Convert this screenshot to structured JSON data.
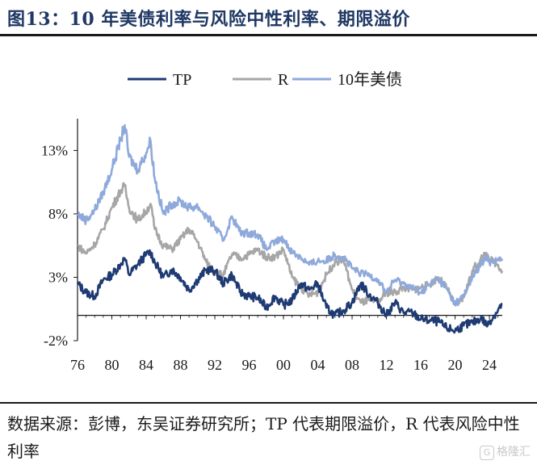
{
  "header": {
    "title": "图13：10 年美债利率与风险中性利率、期限溢价"
  },
  "footer": {
    "source": "数据来源：彭博，东吴证券研究所；TP 代表期限溢价，R 代表风险中性利率"
  },
  "watermark": {
    "icon": "G",
    "text": "格隆汇"
  },
  "chart_data": {
    "type": "line",
    "title": "",
    "xlabel": "",
    "ylabel": "",
    "xlim": [
      1976,
      2025.5
    ],
    "ylim": [
      -2,
      15
    ],
    "y_ticks": [
      13,
      8,
      3,
      -2
    ],
    "y_tick_labels": [
      "13%",
      "8%",
      "3%",
      "-2%"
    ],
    "x_ticks": [
      1976,
      1980,
      1984,
      1988,
      1992,
      1996,
      2000,
      2004,
      2008,
      2012,
      2016,
      2020,
      2024
    ],
    "x_tick_labels": [
      "76",
      "80",
      "84",
      "88",
      "92",
      "96",
      "00",
      "04",
      "08",
      "12",
      "16",
      "20",
      "24"
    ],
    "legend_position": "top",
    "grid": false,
    "series": [
      {
        "name": "TP",
        "color": "#1f3b73",
        "x": [
          1976,
          1977,
          1978,
          1979,
          1980,
          1981,
          1981.5,
          1982,
          1983,
          1984,
          1984.5,
          1985,
          1986,
          1987,
          1988,
          1989,
          1990,
          1991,
          1992,
          1993,
          1994,
          1995,
          1996,
          1997,
          1998,
          1999,
          2000,
          2001,
          2002,
          2003,
          2004,
          2005,
          2006,
          2007,
          2008,
          2009,
          2010,
          2011,
          2012,
          2013,
          2014,
          2015,
          2016,
          2017,
          2018,
          2019,
          2020,
          2021,
          2022,
          2023,
          2023.8,
          2024,
          2025,
          2025.5
        ],
        "values": [
          2.5,
          1.8,
          1.5,
          2.8,
          3.2,
          4.0,
          4.5,
          3.2,
          4.0,
          4.8,
          5.0,
          4.2,
          3.0,
          3.6,
          3.0,
          2.0,
          2.8,
          3.6,
          3.5,
          2.5,
          3.2,
          1.8,
          1.5,
          1.4,
          0.6,
          1.5,
          0.8,
          1.2,
          2.5,
          2.0,
          2.5,
          0.6,
          0.0,
          0.4,
          1.0,
          2.5,
          1.6,
          1.0,
          0.0,
          1.0,
          0.2,
          0.2,
          -0.3,
          -0.4,
          -0.5,
          -1.0,
          -1.2,
          -0.8,
          -0.6,
          -0.2,
          -0.8,
          -0.5,
          0.4,
          0.9
        ]
      },
      {
        "name": "R",
        "color": "#a6a6a6",
        "x": [
          1976,
          1977,
          1978,
          1979,
          1980,
          1981,
          1981.5,
          1982,
          1983,
          1984,
          1984.5,
          1985,
          1986,
          1987,
          1988,
          1989,
          1990,
          1991,
          1992,
          1993,
          1994,
          1995,
          1996,
          1997,
          1998,
          1999,
          2000,
          2001,
          2002,
          2003,
          2004,
          2005,
          2006,
          2007,
          2008,
          2009,
          2010,
          2011,
          2012,
          2013,
          2014,
          2015,
          2016,
          2017,
          2018,
          2019,
          2020,
          2021,
          2022,
          2023,
          2023.8,
          2024,
          2025,
          2025.5
        ],
        "values": [
          5.5,
          4.9,
          5.6,
          6.8,
          8.5,
          9.8,
          10.2,
          8.5,
          7.5,
          8.2,
          8.8,
          6.8,
          5.5,
          5.2,
          6.0,
          6.8,
          5.8,
          4.2,
          3.4,
          3.2,
          4.8,
          4.5,
          4.8,
          5.2,
          4.6,
          4.6,
          5.2,
          3.0,
          2.2,
          1.6,
          1.8,
          3.2,
          4.2,
          4.4,
          2.0,
          1.0,
          1.2,
          1.0,
          1.8,
          1.8,
          2.2,
          2.0,
          2.2,
          2.4,
          3.0,
          2.2,
          0.8,
          1.4,
          3.5,
          4.5,
          4.8,
          4.4,
          4.0,
          3.5
        ]
      },
      {
        "name": "10年美债",
        "color": "#8ea9db",
        "x": [
          1976,
          1977,
          1978,
          1979,
          1980,
          1981,
          1981.5,
          1982,
          1983,
          1984,
          1984.5,
          1985,
          1986,
          1987,
          1988,
          1989,
          1990,
          1991,
          1992,
          1993,
          1994,
          1995,
          1996,
          1997,
          1998,
          1999,
          2000,
          2001,
          2002,
          2003,
          2004,
          2005,
          2006,
          2007,
          2008,
          2009,
          2010,
          2011,
          2012,
          2013,
          2014,
          2015,
          2016,
          2017,
          2018,
          2019,
          2020,
          2021,
          2022,
          2023,
          2023.8,
          2024,
          2025,
          2025.5
        ],
        "values": [
          8.0,
          7.5,
          8.3,
          9.7,
          11.5,
          13.8,
          15.0,
          12.5,
          11.5,
          12.8,
          13.8,
          10.8,
          8.0,
          8.8,
          9.0,
          8.5,
          8.6,
          7.8,
          7.0,
          5.9,
          7.8,
          6.5,
          6.5,
          6.4,
          5.2,
          5.8,
          6.0,
          5.0,
          4.6,
          4.0,
          4.3,
          4.3,
          4.8,
          4.6,
          3.7,
          3.3,
          3.2,
          2.8,
          1.8,
          2.8,
          2.5,
          2.2,
          1.8,
          2.4,
          2.9,
          2.1,
          0.9,
          1.5,
          3.0,
          4.0,
          4.6,
          4.2,
          4.4,
          4.3
        ]
      }
    ]
  }
}
